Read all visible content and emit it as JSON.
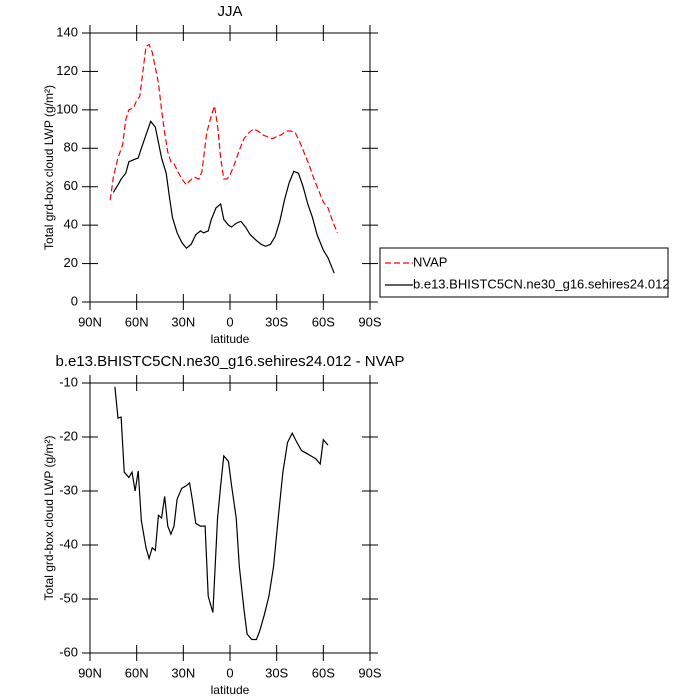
{
  "chart_data": [
    {
      "type": "line",
      "title": "JJA",
      "xlabel": "latitude",
      "ylabel": "Total grd-box cloud LWP (g/m²)",
      "xlim": [
        90,
        -90
      ],
      "xticks": [
        {
          "value": 90,
          "label": "90N"
        },
        {
          "value": 60,
          "label": "60N"
        },
        {
          "value": 30,
          "label": "30N"
        },
        0,
        {
          "value": -30,
          "label": "30S"
        },
        {
          "value": -60,
          "label": "60S"
        },
        {
          "value": -90,
          "label": "90S"
        }
      ],
      "ylim": [
        0,
        140
      ],
      "yticks": [
        0,
        20,
        40,
        60,
        80,
        100,
        120,
        140
      ],
      "legend": "right",
      "series": [
        {
          "name": "NVAP",
          "color": "#ff0000",
          "dashed": true,
          "x": [
            77,
            75,
            72,
            69,
            67,
            65,
            62,
            60,
            58,
            56,
            54,
            52,
            50,
            48,
            46,
            44,
            42,
            40,
            38,
            36,
            33,
            30,
            28,
            26,
            23,
            20,
            18,
            15,
            12,
            10,
            8,
            6,
            4,
            2,
            0,
            -3,
            -6,
            -9,
            -12,
            -15,
            -18,
            -21,
            -24,
            -27,
            -30,
            -33,
            -36,
            -39,
            -42,
            -45,
            -48,
            -51,
            -54,
            -57,
            -60,
            -63,
            -66,
            -69
          ],
          "values": [
            53,
            65,
            75,
            82,
            95,
            100,
            101,
            105,
            107,
            120,
            133,
            134,
            130,
            122,
            114,
            100,
            88,
            78,
            73,
            72,
            67,
            63,
            61,
            63,
            65,
            64,
            68,
            88,
            97,
            102,
            92,
            75,
            64,
            64,
            66,
            72,
            79,
            85,
            88,
            90,
            89,
            87,
            86,
            85,
            86,
            87,
            89,
            89,
            88,
            83,
            77,
            71,
            64,
            58,
            52,
            49,
            42,
            36
          ]
        },
        {
          "name": "b.e13.BHISTC5CN.ne30_g16.sehires24.012",
          "color": "#000000",
          "dashed": false,
          "x": [
            75,
            72,
            70,
            67,
            65,
            62,
            59,
            57,
            54,
            51,
            48,
            46,
            44,
            41,
            39,
            37,
            34,
            31,
            28,
            25,
            22,
            19,
            17,
            14,
            12,
            9,
            6,
            4,
            1,
            -1,
            -4,
            -7,
            -10,
            -13,
            -17,
            -20,
            -23,
            -26,
            -29,
            -32,
            -35,
            -38,
            -41,
            -44,
            -47,
            -50,
            -53,
            -56,
            -60,
            -63,
            -67
          ],
          "values": [
            57,
            61,
            64,
            67,
            73,
            74,
            75,
            80,
            87,
            94,
            91,
            83,
            75,
            67,
            55,
            44,
            36,
            31,
            28,
            30,
            35,
            37,
            36,
            37,
            43,
            49,
            51,
            43,
            40,
            39,
            41,
            42,
            39,
            35,
            32,
            30,
            29,
            30,
            34,
            42,
            53,
            62,
            68,
            67,
            60,
            51,
            44,
            35,
            27,
            23,
            15
          ]
        }
      ]
    },
    {
      "type": "line",
      "title": "b.e13.BHISTC5CN.ne30_g16.sehires24.012 - NVAP",
      "xlabel": "latitude",
      "ylabel": "Total grd-box cloud LWP (g/m²)",
      "xlim": [
        90,
        -90
      ],
      "xticks": [
        {
          "value": 90,
          "label": "90N"
        },
        {
          "value": 60,
          "label": "60N"
        },
        {
          "value": 30,
          "label": "30N"
        },
        0,
        {
          "value": -30,
          "label": "30S"
        },
        {
          "value": -60,
          "label": "60S"
        },
        {
          "value": -90,
          "label": "90S"
        }
      ],
      "ylim": [
        -60,
        -10
      ],
      "yticks": [
        -60,
        -50,
        -40,
        -30,
        -20,
        -10
      ],
      "series": [
        {
          "color": "#000000",
          "dashed": false,
          "x": [
            74,
            72,
            70,
            68,
            65,
            63,
            61,
            59,
            57,
            54,
            52,
            50,
            48,
            46,
            44,
            42,
            40,
            38,
            36,
            34,
            31,
            28,
            26,
            24,
            22,
            19,
            16,
            14,
            11,
            8,
            6,
            4,
            1,
            -1,
            -4,
            -6,
            -9,
            -11,
            -14,
            -17,
            -19,
            -22,
            -25,
            -28,
            -31,
            -34,
            -37,
            -40,
            -43,
            -46,
            -49,
            -52,
            -55,
            -58,
            -60,
            -63
          ],
          "values": [
            -10.7,
            -16.5,
            -16.3,
            -26.5,
            -27.5,
            -26.5,
            -30,
            -26.3,
            -35.5,
            -40.5,
            -42.5,
            -40.5,
            -41,
            -34.5,
            -35,
            -31,
            -36.5,
            -38,
            -36.5,
            -31.5,
            -29.5,
            -29,
            -28.5,
            -32,
            -36,
            -36.5,
            -36.5,
            -49.5,
            -52.5,
            -35,
            -29,
            -23.5,
            -24.5,
            -29,
            -35,
            -44,
            -52,
            -56.5,
            -57.5,
            -57.5,
            -56,
            -53,
            -49.5,
            -44,
            -35,
            -26.5,
            -21,
            -19.3,
            -21,
            -22.5,
            -23,
            -23.5,
            -24,
            -25,
            -20.5,
            -21.5
          ]
        }
      ]
    }
  ]
}
